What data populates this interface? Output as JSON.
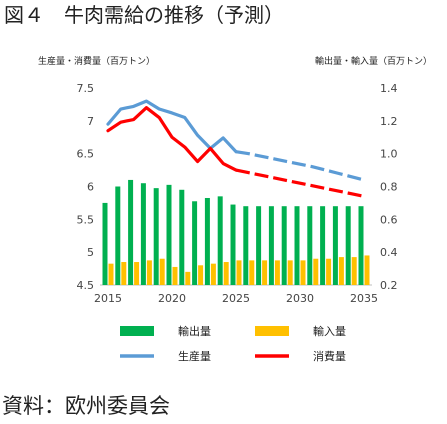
{
  "figure": {
    "title": "図４　牛肉需給の推移（予測）",
    "source": "資料：欧州委員会"
  },
  "chart_data": {
    "type": "bar+line",
    "left_axis_label": "生産量・消費量（百万トン）",
    "right_axis_label": "輸出量・輸入量（百万トン）",
    "ylim_left": [
      4.5,
      7.5
    ],
    "ylim_right": [
      0.2,
      1.4
    ],
    "yticks_left": [
      "4.5",
      "5",
      "5.5",
      "6",
      "6.5",
      "7",
      "7.5"
    ],
    "yticks_right": [
      "0.2",
      "0.4",
      "0.6",
      "0.8",
      "1.0",
      "1.2",
      "1.4"
    ],
    "x_ticks": [
      "2015",
      "2020",
      "2025",
      "2030",
      "2035"
    ],
    "years": [
      2015,
      2016,
      2017,
      2018,
      2019,
      2020,
      2021,
      2022,
      2023,
      2024,
      2025,
      2026,
      2027,
      2028,
      2029,
      2030,
      2031,
      2032,
      2033,
      2034,
      2035
    ],
    "projection_start": 2025,
    "series": [
      {
        "name": "輸出量",
        "kind": "bar",
        "axis": "right",
        "color": "#00b050",
        "values": [
          0.7,
          0.8,
          0.84,
          0.82,
          0.79,
          0.81,
          0.78,
          0.71,
          0.73,
          0.74,
          0.69,
          0.68,
          0.68,
          0.68,
          0.68,
          0.68,
          0.68,
          0.68,
          0.68,
          0.68,
          0.68
        ]
      },
      {
        "name": "輸入量",
        "kind": "bar",
        "axis": "right",
        "color": "#ffc000",
        "values": [
          0.33,
          0.34,
          0.34,
          0.35,
          0.36,
          0.31,
          0.28,
          0.32,
          0.33,
          0.34,
          0.35,
          0.35,
          0.35,
          0.35,
          0.35,
          0.35,
          0.36,
          0.36,
          0.37,
          0.37,
          0.38
        ]
      },
      {
        "name": "生産量",
        "kind": "line",
        "axis": "left",
        "color": "#5b9bd5",
        "values": [
          6.95,
          7.18,
          7.22,
          7.3,
          7.18,
          7.12,
          7.05,
          6.78,
          6.58,
          6.74,
          6.53,
          6.5,
          6.46,
          6.42,
          6.38,
          6.34,
          6.3,
          6.25,
          6.2,
          6.15,
          6.1
        ]
      },
      {
        "name": "消費量",
        "kind": "line",
        "axis": "left",
        "color": "#ff0000",
        "values": [
          6.85,
          6.98,
          7.02,
          7.2,
          7.05,
          6.75,
          6.6,
          6.38,
          6.58,
          6.35,
          6.25,
          6.21,
          6.17,
          6.13,
          6.09,
          6.05,
          6.01,
          5.97,
          5.93,
          5.89,
          5.85
        ]
      }
    ],
    "legend": {
      "position": "bottom",
      "items": [
        "輸出量",
        "輸入量",
        "生産量",
        "消費量"
      ]
    }
  }
}
